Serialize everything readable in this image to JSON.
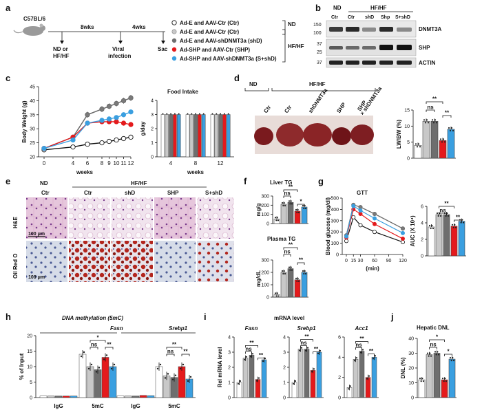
{
  "colors": {
    "ctr_nd": "#ffffff",
    "ctr": "#c8c8c8",
    "shd": "#6e6e6e",
    "shp": "#e41a1c",
    "sshd": "#3a9fe0"
  },
  "panels": {
    "a": "a",
    "b": "b",
    "c": "c",
    "d": "d",
    "e": "e",
    "f": "f",
    "g": "g",
    "h": "h",
    "i": "i",
    "j": "j"
  },
  "a": {
    "mouse": "C57BL/6",
    "wk1": "8wks",
    "wk2": "4wks",
    "step1": "ND or",
    "step1b": "HF/HF",
    "step2": "Viral",
    "step2b": "infection",
    "step3": "Sac",
    "legend": [
      "Ad-E and AAV-Ctr (Ctr)",
      "Ad-E and AAV-Ctr (Ctr)",
      "Ad-E and AAV-shDNMT3a (shD)",
      "Ad-SHP and AAV-Ctr (SHP)",
      "Ad-SHP and AAV-shDNMT3a (S+shD)"
    ],
    "grp_nd": "ND",
    "grp_hf": "HF/HF"
  },
  "b": {
    "grp_nd": "ND",
    "grp_hf": "HF/HF",
    "lanes": [
      "Ctr",
      "Ctr",
      "shD",
      "Shp",
      "S+shD"
    ],
    "markers": [
      "150",
      "100",
      "37",
      "25",
      "37"
    ],
    "bands": [
      "DNMT3A",
      "SHP",
      "ACTIN"
    ]
  },
  "c": {
    "ylabel": "Body Weight (g)",
    "xlabel": "weeks",
    "yticks": [
      "20",
      "25",
      "30",
      "35",
      "40",
      "45"
    ],
    "xticks": [
      "0",
      "4",
      "6",
      "8",
      "9",
      "10",
      "11",
      "12"
    ],
    "fi_title": "Food Intake",
    "fi_ylabel": "g/day",
    "fi_xlabel": "weeks",
    "fi_yticks": [
      "0",
      "1",
      "2",
      "3",
      "4"
    ],
    "fi_xticks": [
      "4",
      "8",
      "12"
    ]
  },
  "chart_data": [
    {
      "type": "line",
      "title": "Body weight",
      "xlabel": "weeks",
      "ylabel": "Body Weight (g)",
      "ylim": [
        20,
        45
      ],
      "x": [
        0,
        4,
        6,
        8,
        9,
        10,
        11,
        12
      ],
      "series": [
        {
          "name": "Ctr (ND)",
          "values": [
            22.5,
            23.5,
            24.5,
            25,
            25.5,
            26,
            26.5,
            27
          ]
        },
        {
          "name": "Ctr",
          "values": [
            23,
            27,
            35,
            37,
            38,
            39,
            40,
            41
          ]
        },
        {
          "name": "shD",
          "values": [
            23,
            27,
            35,
            37,
            38,
            39,
            40,
            41
          ]
        },
        {
          "name": "SHP",
          "values": [
            23,
            27,
            32,
            32.5,
            32.5,
            32.5,
            32,
            31.5
          ]
        },
        {
          "name": "S+shD",
          "values": [
            23,
            26,
            32,
            33,
            33.5,
            34,
            35,
            36
          ]
        }
      ]
    },
    {
      "type": "bar",
      "title": "Food Intake",
      "xlabel": "weeks",
      "ylabel": "g/day",
      "ylim": [
        0,
        4
      ],
      "categories": [
        "4",
        "8",
        "12"
      ],
      "series": [
        {
          "name": "Ctr (ND)",
          "values": [
            3.0,
            3.0,
            3.0
          ]
        },
        {
          "name": "Ctr",
          "values": [
            3.0,
            3.0,
            3.0
          ]
        },
        {
          "name": "shD",
          "values": [
            3.0,
            3.0,
            3.0
          ]
        },
        {
          "name": "SHP",
          "values": [
            3.0,
            3.0,
            3.0
          ]
        },
        {
          "name": "S+shD",
          "values": [
            3.0,
            3.0,
            3.0
          ]
        }
      ]
    },
    {
      "type": "bar",
      "title": "LW/BW",
      "ylabel": "LW/BW (%)",
      "ylim": [
        0,
        15
      ],
      "categories": [
        "Ctr (ND)",
        "Ctr",
        "shD",
        "SHP",
        "S+shD"
      ],
      "values": [
        4,
        11.5,
        11.5,
        5.5,
        9
      ]
    },
    {
      "type": "bar",
      "title": "Liver TG",
      "ylabel": "mg/g",
      "ylim": [
        0,
        300
      ],
      "categories": [
        "Ctr (ND)",
        "Ctr",
        "shD",
        "SHP",
        "S+shD"
      ],
      "values": [
        50,
        210,
        230,
        135,
        180
      ]
    },
    {
      "type": "bar",
      "title": "Plasma TG",
      "ylabel": "mg/dL",
      "ylim": [
        0,
        300
      ],
      "categories": [
        "Ctr (ND)",
        "Ctr",
        "shD",
        "SHP",
        "S+shD"
      ],
      "values": [
        20,
        200,
        230,
        140,
        200
      ]
    },
    {
      "type": "line",
      "title": "GTT",
      "xlabel": "(min)",
      "ylabel": "Blood glucose (mg/dl)",
      "ylim": [
        0,
        500
      ],
      "x": [
        0,
        15,
        30,
        60,
        120
      ],
      "series": [
        {
          "name": "Ctr (ND)",
          "values": [
            120,
            330,
            260,
            200,
            110
          ]
        },
        {
          "name": "Ctr",
          "values": [
            170,
            440,
            420,
            360,
            230
          ]
        },
        {
          "name": "shD",
          "values": [
            170,
            440,
            420,
            360,
            230
          ]
        },
        {
          "name": "SHP",
          "values": [
            150,
            400,
            360,
            270,
            140
          ]
        },
        {
          "name": "S+shD",
          "values": [
            160,
            430,
            390,
            320,
            190
          ]
        }
      ]
    },
    {
      "type": "bar",
      "title": "AUC",
      "ylabel": "AUC (X 10^4)",
      "ylim": [
        0,
        6
      ],
      "categories": [
        "Ctr (ND)",
        "Ctr",
        "shD",
        "SHP",
        "S+shD"
      ],
      "values": [
        3.5,
        5,
        5,
        3.6,
        4.2
      ]
    },
    {
      "type": "bar",
      "title": "DNA methylation (5mC)",
      "ylabel": "% of Input",
      "ylim": [
        0,
        20
      ],
      "categories": [
        "Fasn IgG",
        "Fasn 5mC",
        "Srebp1 IgG",
        "Srebp1 5mC"
      ],
      "series": [
        {
          "name": "Ctr (ND)",
          "values": [
            0.5,
            14,
            0.5,
            10
          ]
        },
        {
          "name": "Ctr",
          "values": [
            0.5,
            10,
            0.5,
            7
          ]
        },
        {
          "name": "shD",
          "values": [
            0.5,
            9,
            0.5,
            6.5
          ]
        },
        {
          "name": "SHP",
          "values": [
            0.5,
            13,
            0.7,
            10
          ]
        },
        {
          "name": "S+shD",
          "values": [
            0.5,
            10,
            0.6,
            6
          ]
        }
      ]
    },
    {
      "type": "bar",
      "title": "mRNA level",
      "ylabel": "Rel mRNA level",
      "categories": [
        "Fasn",
        "Srebp1",
        "Acc1"
      ],
      "series": [
        {
          "name": "Ctr (ND)",
          "values": [
            1,
            1,
            1
          ]
        },
        {
          "name": "Ctr",
          "values": [
            2.6,
            3.2,
            3.8
          ]
        },
        {
          "name": "shD",
          "values": [
            2.8,
            3.2,
            4.6
          ]
        },
        {
          "name": "SHP",
          "values": [
            1.2,
            1.8,
            2.0
          ]
        },
        {
          "name": "S+shD",
          "values": [
            2.5,
            3.0,
            4.0
          ]
        }
      ]
    },
    {
      "type": "bar",
      "title": "Hepatic DNL",
      "ylabel": "DNL (%)",
      "ylim": [
        0,
        40
      ],
      "categories": [
        "Ctr (ND)",
        "Ctr",
        "shD",
        "SHP",
        "S+shD"
      ],
      "values": [
        12,
        29,
        30,
        12,
        26
      ]
    }
  ],
  "d": {
    "grp_nd": "ND",
    "grp_hf": "HF/HF",
    "lanes": [
      "Ctr",
      "Ctr",
      "shDNMT3a",
      "SHP",
      "SHP"
    ],
    "lane_extra": "× shDNMT3a",
    "ylabel": "LW/BW (%)",
    "yticks": [
      "0",
      "5",
      "10",
      "15"
    ],
    "sig": [
      "**",
      "ns",
      "**"
    ]
  },
  "e": {
    "grp_nd": "ND",
    "grp_hf": "HF/HF",
    "cols": [
      "Ctr",
      "Ctr",
      "shD",
      "SHP",
      "S+shD"
    ],
    "row1": "H&E",
    "row2": "Oil Red O",
    "scale": "100 μm"
  },
  "f": {
    "title1": "Liver TG",
    "y1": "mg/g",
    "yticks1": [
      "0",
      "100",
      "200",
      "300"
    ],
    "title2": "Plasma TG",
    "y2": "mg/dL",
    "yticks2": [
      "0",
      "100",
      "200",
      "300"
    ],
    "sig1": [
      "**",
      "ns",
      "*"
    ],
    "sig2": [
      "**",
      "ns",
      "**"
    ]
  },
  "g": {
    "title": "GTT",
    "ylabel": "Blood glucose (mg/dl)",
    "xlabel": "(min)",
    "yticks": [
      "0",
      "100",
      "200",
      "300",
      "400",
      "500"
    ],
    "xticks": [
      "0",
      "15",
      "30",
      "60",
      "90",
      "120"
    ],
    "auc_ylabel": "AUC (X 10⁴)",
    "auc_yticks": [
      "0",
      "2",
      "4",
      "6"
    ],
    "sig": [
      "**",
      "ns",
      "**"
    ]
  },
  "h": {
    "title": "DNA methylation (5mC)",
    "ylabel": "% of Input",
    "genes": [
      "Fasn",
      "Srebp1"
    ],
    "xlabels": [
      "IgG",
      "5mC",
      "IgG",
      "5mC"
    ],
    "yticks": [
      "0",
      "5",
      "10",
      "15",
      "20"
    ],
    "sig_a": [
      "*",
      "ns",
      "**"
    ],
    "sig_b": [
      "**",
      "ns",
      "**"
    ]
  },
  "i": {
    "title": "mRNA level",
    "ylabel": "Rel mRNA level",
    "genes": [
      "Fasn",
      "Srebp1",
      "Acc1"
    ],
    "yt1": [
      "0",
      "1",
      "2",
      "3",
      "4"
    ],
    "yt2": [
      "0",
      "1",
      "2",
      "3",
      "4"
    ],
    "yt3": [
      "0",
      "2",
      "4",
      "6"
    ],
    "sig": [
      "**",
      "ns",
      "**"
    ]
  },
  "j": {
    "title": "Hepatic DNL",
    "ylabel": "DNL (%)",
    "yticks": [
      "0",
      "10",
      "20",
      "30",
      "40"
    ],
    "sig": [
      "*",
      "ns",
      "*"
    ]
  }
}
